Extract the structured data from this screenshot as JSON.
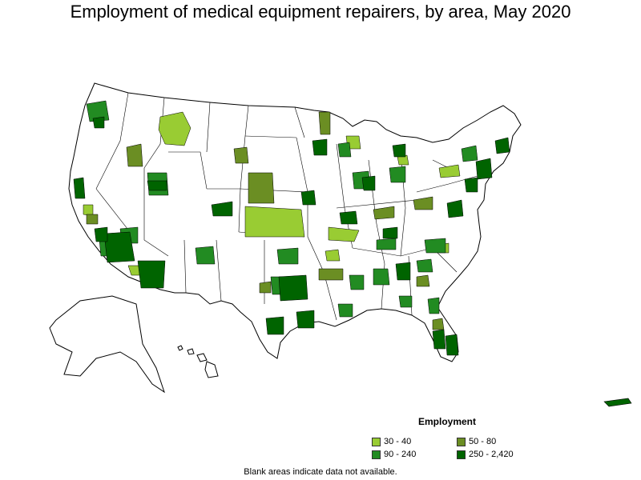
{
  "title": "Employment of medical equipment repairers, by area, May 2020",
  "legend": {
    "title": "Employment",
    "items": [
      {
        "label": "30 - 40",
        "color": "#99cc33"
      },
      {
        "label": "50 - 80",
        "color": "#6b8e23"
      },
      {
        "label": "90 - 240",
        "color": "#228b22"
      },
      {
        "label": "250 - 2,420",
        "color": "#006400"
      }
    ]
  },
  "footnote": "Blank areas indicate data not available."
}
